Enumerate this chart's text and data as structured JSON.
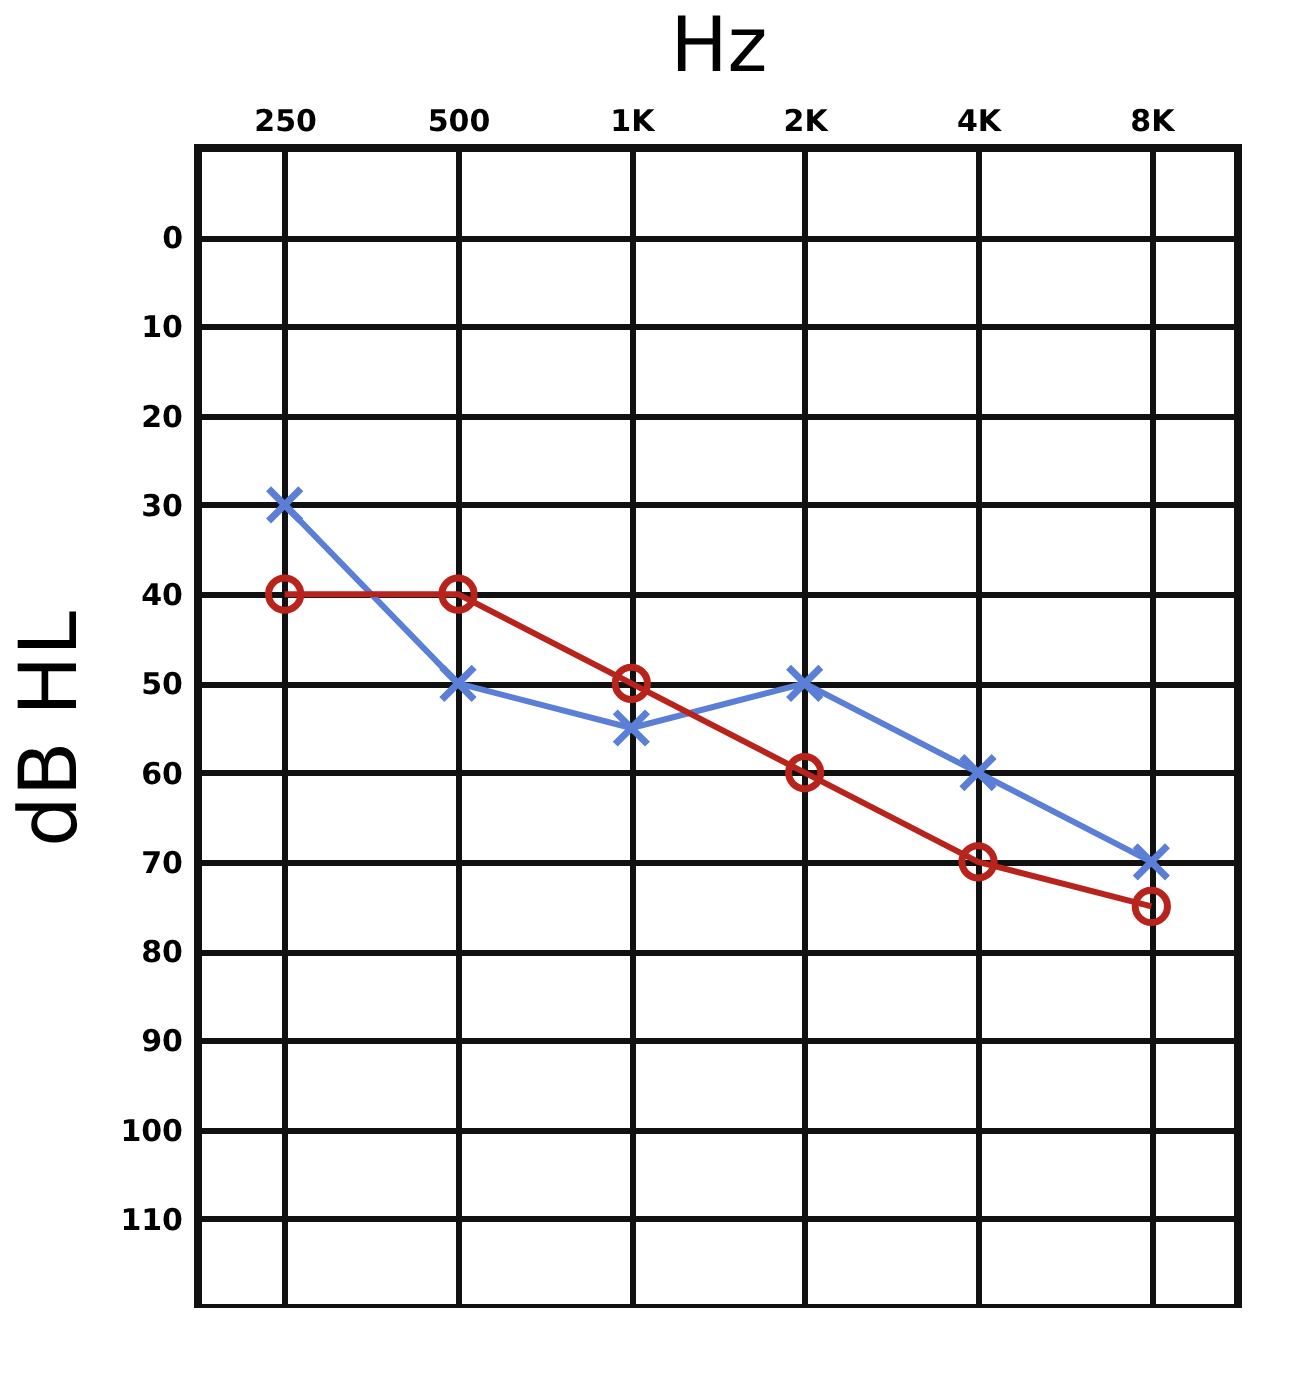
{
  "chart_data": {
    "type": "line",
    "xlabel": "Hz",
    "ylabel": "dB HL",
    "categories": [
      "250",
      "500",
      "1K",
      "2K",
      "4K",
      "8K"
    ],
    "series": [
      {
        "color": "#5b7fd6",
        "marker": "cross",
        "values": [
          30,
          50,
          55,
          50,
          60,
          70
        ]
      },
      {
        "color": "#b8241c",
        "marker": "circle",
        "values": [
          40,
          40,
          50,
          60,
          70,
          75
        ]
      }
    ],
    "ylim": [
      120,
      -10
    ],
    "yticks": [
      0,
      10,
      20,
      30,
      40,
      50,
      60,
      70,
      80,
      90,
      100,
      110
    ],
    "grid": true,
    "line_style": "solid"
  }
}
